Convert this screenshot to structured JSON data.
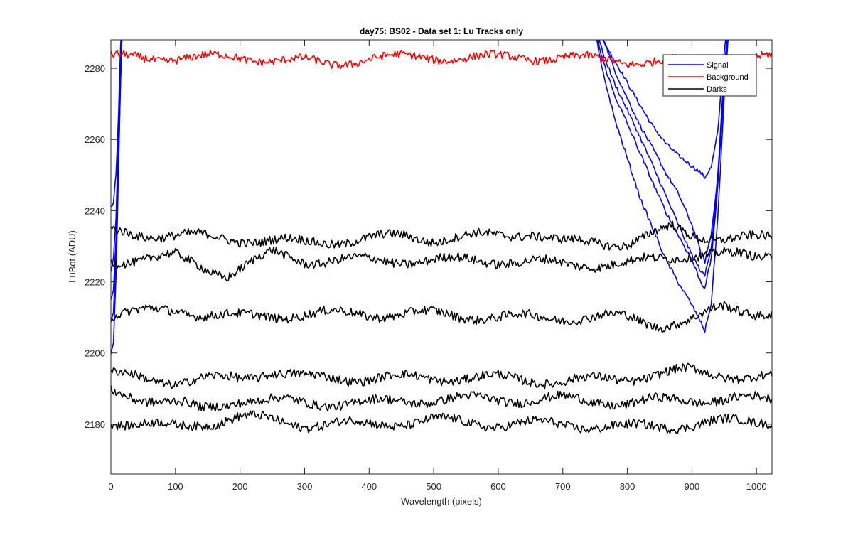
{
  "chart_data": {
    "type": "line",
    "title": "day75: BS02 - Data set 1: Lu Tracks only",
    "xlabel": "Wavelength (pixels)",
    "ylabel": "LuBot (ADU)",
    "xlim": [
      0,
      1024
    ],
    "ylim": [
      2166,
      2288
    ],
    "xticks": [
      0,
      100,
      200,
      300,
      400,
      500,
      600,
      700,
      800,
      900,
      1000
    ],
    "yticks": [
      2180,
      2200,
      2220,
      2240,
      2260,
      2280
    ],
    "grid": false,
    "legend_position": "top-right",
    "legend": [
      {
        "label": "Signal",
        "color": "#0000ff"
      },
      {
        "label": "Background",
        "color": "#ff0000"
      },
      {
        "label": "Darks",
        "color": "#000000"
      }
    ],
    "series": [
      {
        "name": "Signal",
        "color": "#0000ff",
        "curves": [
          {
            "x": [
              0,
              4,
              8,
              11,
              14,
              17,
              20,
              740,
              760,
              780,
              800,
              820,
              840,
              860,
              880,
              900,
              915,
              920,
              930,
              940,
              950,
              960
            ],
            "y": [
              2241,
              2242,
              2250,
              2262,
              2280,
              2295,
              2300,
              2300,
              2288,
              2282,
              2276,
              2270,
              2264,
              2259,
              2255,
              2252,
              2250,
              2249,
              2252,
              2262,
              2285,
              2300
            ]
          },
          {
            "x": [
              0,
              4,
              8,
              11,
              14,
              17,
              20,
              740,
              760,
              780,
              800,
              820,
              840,
              860,
              880,
              900,
              915,
              920,
              930,
              940,
              950,
              960
            ],
            "y": [
              2222,
              2226,
              2238,
              2255,
              2275,
              2292,
              2300,
              2300,
              2290,
              2280,
              2272,
              2264,
              2257,
              2250,
              2244,
              2236,
              2228,
              2226,
              2234,
              2250,
              2280,
              2300
            ]
          },
          {
            "x": [
              0,
              4,
              8,
              11,
              14,
              17,
              20,
              740,
              760,
              780,
              800,
              820,
              840,
              860,
              880,
              900,
              915,
              920,
              930,
              940,
              950,
              960
            ],
            "y": [
              2215,
              2218,
              2232,
              2250,
              2272,
              2290,
              2300,
              2300,
              2286,
              2276,
              2268,
              2260,
              2252,
              2244,
              2236,
              2228,
              2223,
              2222,
              2230,
              2248,
              2278,
              2300
            ]
          },
          {
            "x": [
              0,
              4,
              8,
              11,
              14,
              17,
              20,
              740,
              760,
              780,
              800,
              820,
              840,
              860,
              880,
              900,
              915,
              920,
              930,
              940,
              950,
              960
            ],
            "y": [
              2209,
              2212,
              2228,
              2248,
              2270,
              2290,
              2300,
              2300,
              2283,
              2272,
              2264,
              2256,
              2248,
              2240,
              2233,
              2226,
              2219,
              2218,
              2226,
              2246,
              2276,
              2300
            ]
          },
          {
            "x": [
              0,
              4,
              8,
              11,
              14,
              17,
              20,
              740,
              760,
              780,
              800,
              820,
              840,
              860,
              880,
              900,
              915,
              920,
              930,
              940,
              950,
              960
            ],
            "y": [
              2199,
              2203,
              2222,
              2244,
              2268,
              2290,
              2300,
              2300,
              2280,
              2266,
              2255,
              2244,
              2235,
              2226,
              2219,
              2213,
              2208,
              2206,
              2214,
              2238,
              2272,
              2300
            ]
          }
        ]
      },
      {
        "name": "Background",
        "color": "#ff0000",
        "curves": [
          {
            "x": [
              0,
              100,
              200,
              300,
              340,
              400,
              500,
              600,
              700,
              800,
              900,
              1024
            ],
            "y": [
              2283,
              2283,
              2283,
              2282,
              2281,
              2283,
              2283,
              2283,
              2283,
              2282,
              2282,
              2283
            ]
          }
        ]
      },
      {
        "name": "Darks",
        "color": "#000000",
        "curves": [
          {
            "x": [
              0,
              100,
              200,
              300,
              400,
              460,
              500,
              600,
              650,
              700,
              800,
              870,
              900,
              1000,
              1024
            ],
            "y": [
              2234,
              2233,
              2232,
              2231,
              2232,
              2233,
              2232,
              2233,
              2234,
              2231,
              2231,
              2235,
              2233,
              2232,
              2232
            ]
          },
          {
            "x": [
              0,
              100,
              180,
              250,
              300,
              400,
              500,
              600,
              700,
              800,
              900,
              1000,
              1024
            ],
            "y": [
              2226,
              2227,
              2222,
              2228,
              2226,
              2226,
              2226,
              2226,
              2225,
              2225,
              2228,
              2227,
              2228
            ]
          },
          {
            "x": [
              0,
              100,
              200,
              300,
              400,
              500,
              600,
              700,
              800,
              850,
              900,
              950,
              1024
            ],
            "y": [
              2211,
              2212,
              2210,
              2211,
              2211,
              2211,
              2210,
              2210,
              2210,
              2208,
              2209,
              2213,
              2211
            ]
          },
          {
            "x": [
              0,
              100,
              200,
              250,
              300,
              400,
              500,
              600,
              700,
              800,
              900,
              1000,
              1024
            ],
            "y": [
              2194,
              2192,
              2193,
              2195,
              2193,
              2193,
              2193,
              2193,
              2192,
              2193,
              2195,
              2193,
              2193
            ]
          },
          {
            "x": [
              0,
              100,
              140,
              200,
              300,
              400,
              500,
              600,
              700,
              800,
              900,
              1000,
              1024
            ],
            "y": [
              2189,
              2186,
              2184,
              2187,
              2186,
              2186,
              2187,
              2187,
              2187,
              2186,
              2187,
              2187,
              2187
            ]
          },
          {
            "x": [
              0,
              100,
              200,
              300,
              400,
              500,
              600,
              700,
              800,
              900,
              1000,
              1024
            ],
            "y": [
              2181,
              2179,
              2182,
              2180,
              2180,
              2181,
              2180,
              2180,
              2179,
              2180,
              2181,
              2181
            ]
          }
        ]
      }
    ]
  }
}
